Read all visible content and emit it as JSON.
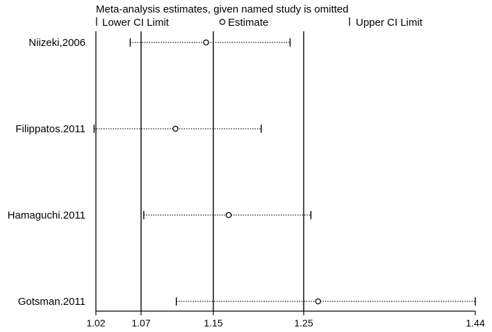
{
  "chart_data": {
    "type": "forest",
    "title": "Meta-analysis estimates, given named study is omitted",
    "legend": {
      "placement": "top",
      "items": [
        {
          "symbol": "|",
          "label": "Lower CI Limit"
        },
        {
          "symbol": "○",
          "label": "Estimate"
        },
        {
          "symbol": "|",
          "label": "Upper CI Limit"
        }
      ]
    },
    "xlim": [
      1.02,
      1.44
    ],
    "xticks": [
      1.02,
      1.07,
      1.15,
      1.25,
      1.44
    ],
    "xtick_labels": [
      "1.02",
      "1.07",
      "1.15",
      "1.25",
      "1.44"
    ],
    "reference_lines": [
      1.07,
      1.15,
      1.25
    ],
    "studies": [
      {
        "name": "Niizeki,2006",
        "lower": 1.058,
        "estimate": 1.142,
        "upper": 1.235
      },
      {
        "name": "Filippatos.2011",
        "lower": 1.018,
        "estimate": 1.108,
        "upper": 1.203
      },
      {
        "name": "Hamaguchi.2011",
        "lower": 1.073,
        "estimate": 1.167,
        "upper": 1.258
      },
      {
        "name": "Gotsman.2011",
        "lower": 1.109,
        "estimate": 1.266,
        "upper": 1.44
      }
    ],
    "grid": false,
    "colors": {
      "line": "#000000",
      "background": "#ffffff"
    }
  }
}
